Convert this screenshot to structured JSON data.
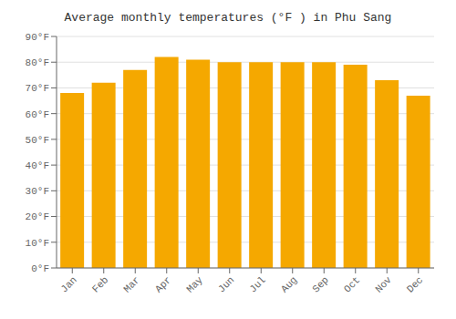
{
  "chart_data": {
    "type": "bar",
    "title": "Average monthly temperatures (°F ) in Phu Sang",
    "categories": [
      "Jan",
      "Feb",
      "Mar",
      "Apr",
      "May",
      "Jun",
      "Jul",
      "Aug",
      "Sep",
      "Oct",
      "Nov",
      "Dec"
    ],
    "values": [
      68,
      72,
      77,
      82,
      81,
      80,
      80,
      80,
      80,
      79,
      73,
      67
    ],
    "color": "#F5A800",
    "ylim": [
      0,
      90
    ],
    "yticks": [
      {
        "value": 0,
        "label": "0°F"
      },
      {
        "value": 10,
        "label": "10°F"
      },
      {
        "value": 20,
        "label": "20°F"
      },
      {
        "value": 30,
        "label": "30°F"
      },
      {
        "value": 40,
        "label": "40°F"
      },
      {
        "value": 50,
        "label": "50°F"
      },
      {
        "value": 60,
        "label": "60°F"
      },
      {
        "value": 70,
        "label": "70°F"
      },
      {
        "value": 80,
        "label": "80°F"
      },
      {
        "value": 90,
        "label": "90°F"
      }
    ],
    "grid": true
  }
}
